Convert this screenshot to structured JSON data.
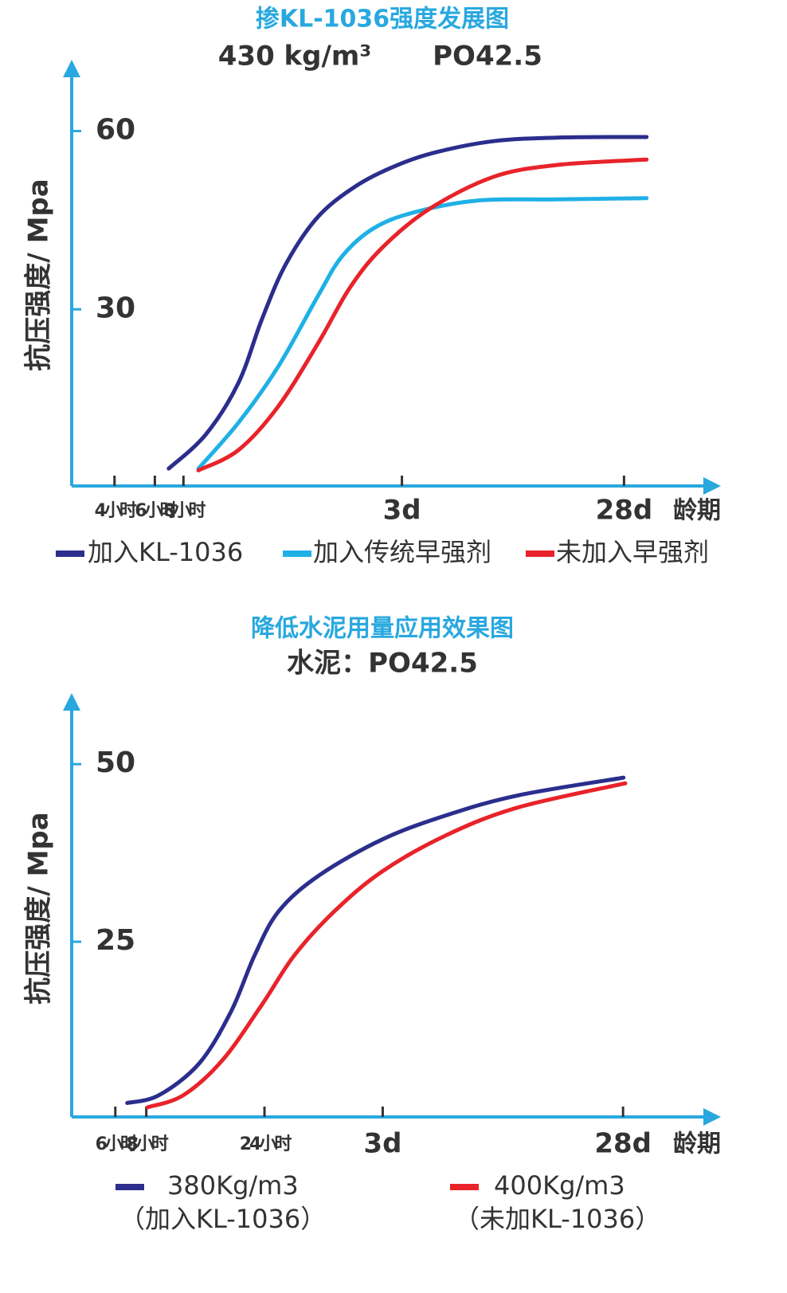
{
  "chart_data": [
    {
      "type": "line",
      "title": "掺KL-1036强度发展图",
      "subtitle": [
        "430 kg/m³",
        "PO42.5"
      ],
      "ylabel": "抗压强度/ Mpa",
      "xlabel": "龄期",
      "xscale": "log",
      "xlim": [
        2.6,
        1780
      ],
      "xticks": [
        {
          "value": 4,
          "label": "4小时"
        },
        {
          "value": 6,
          "label": "6小时"
        },
        {
          "value": 8,
          "label": "8小时"
        },
        {
          "value": 72,
          "label": "3d"
        },
        {
          "value": 672,
          "label": "28d"
        }
      ],
      "ylim": [
        0,
        72
      ],
      "yticks": [
        30,
        60
      ],
      "axis_color": "#29a8df",
      "series": [
        {
          "name": "加入KL-1036",
          "color": "#2b2e8c",
          "x": [
            6.9,
            10.0,
            13.9,
            17.6,
            22.4,
            31,
            46,
            69,
            103,
            181,
            344,
            843
          ],
          "values": [
            3.2,
            8.9,
            17.6,
            28.3,
            37.6,
            45.6,
            50.9,
            54.3,
            56.5,
            58.3,
            58.9,
            59
          ]
        },
        {
          "name": "加入传统早强剂",
          "color": "#1fb0e6",
          "x": [
            9.3,
            13.9,
            20.7,
            31,
            39.4,
            54,
            81,
            154,
            344,
            843
          ],
          "values": [
            3.2,
            10.9,
            20.3,
            32.3,
            38.9,
            43.6,
            46.3,
            48.3,
            48.5,
            48.7
          ]
        },
        {
          "name": "未加入早强剂",
          "color": "#e8232a",
          "x": [
            9.3,
            13.9,
            20.7,
            31,
            42.6,
            58.8,
            95,
            181,
            344,
            843
          ],
          "values": [
            2.9,
            6.3,
            13.6,
            24.3,
            33.6,
            40.3,
            46.9,
            52.3,
            54.3,
            55.2
          ]
        }
      ]
    },
    {
      "type": "line",
      "title": "降低水泥用量应用效果图",
      "subtitle": [
        "水泥：PO42.5"
      ],
      "ylabel": "抗压强度/ Mpa",
      "xlabel": "龄期",
      "xscale": "log",
      "xlim": [
        4.0,
        1668
      ],
      "xticks": [
        {
          "value": 6,
          "label": "6小时"
        },
        {
          "value": 8,
          "label": "8小时"
        },
        {
          "value": 24,
          "label": "24小时"
        },
        {
          "value": 72,
          "label": "3d"
        },
        {
          "value": 672,
          "label": "28d"
        }
      ],
      "ylim": [
        0,
        60
      ],
      "yticks": [
        25,
        50
      ],
      "axis_color": "#29a8df",
      "series": [
        {
          "name": "380Kg/m3",
          "caption": "（加入KL-1036）",
          "color": "#2b2e8c",
          "x": [
            6.7,
            9.0,
            13.1,
            17.6,
            21.9,
            27.4,
            39.7,
            71.7,
            130,
            253,
            675
          ],
          "values": [
            2.3,
            3.4,
            7.9,
            15.2,
            23.1,
            29.3,
            34.3,
            39.4,
            42.8,
            45.6,
            48.1
          ]
        },
        {
          "name": "400Kg/m3",
          "caption": "（未加KL-1036）",
          "color": "#e8232a",
          "x": [
            8.1,
            11.3,
            16.3,
            23.6,
            31.7,
            46,
            71.7,
            130,
            253,
            686
          ],
          "values": [
            1.7,
            3.4,
            8.4,
            16.3,
            23.1,
            29.3,
            34.9,
            40,
            43.9,
            47.3
          ]
        }
      ]
    }
  ]
}
